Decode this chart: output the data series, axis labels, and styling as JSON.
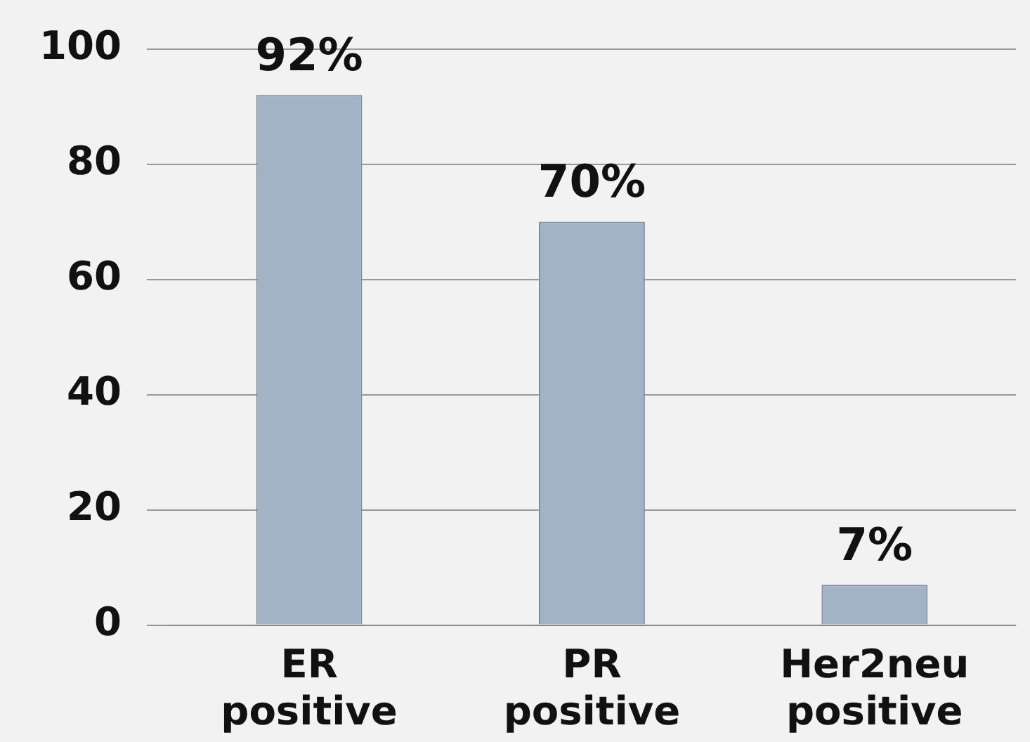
{
  "chart_data": {
    "type": "bar",
    "categories": [
      "ER positive",
      "PR positive",
      "Her2neu positive"
    ],
    "values": [
      92,
      70,
      7
    ],
    "color": "#a3b3c6",
    "value_labels": [
      "92%",
      "70%",
      "7%"
    ],
    "ylim": [
      0,
      100
    ],
    "yticks": [
      0,
      20,
      40,
      60,
      80,
      100
    ],
    "grid": "y",
    "legend": false
  }
}
